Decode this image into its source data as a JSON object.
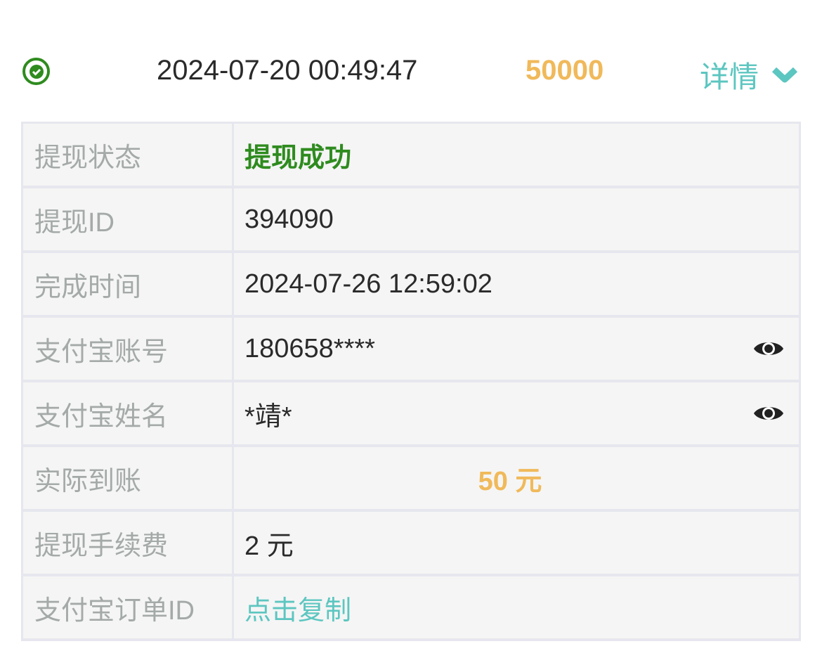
{
  "header": {
    "status_icon": "check-circle-icon",
    "time": "2024-07-20 00:49:47",
    "amount": "50000",
    "detail_label": "详情",
    "detail_icon": "chevron-down-icon"
  },
  "details": {
    "rows": [
      {
        "label": "提现状态",
        "value": "提现成功"
      },
      {
        "label": "提现ID",
        "value": "394090"
      },
      {
        "label": "完成时间",
        "value": "2024-07-26 12:59:02"
      },
      {
        "label": "支付宝账号",
        "value": "180658****",
        "icon": "eye-icon"
      },
      {
        "label": "支付宝姓名",
        "value": "*靖*",
        "icon": "eye-icon"
      },
      {
        "label": "实际到账",
        "value": "50 元"
      },
      {
        "label": "提现手续费",
        "value": "2 元"
      },
      {
        "label": "支付宝订单ID",
        "value": "点击复制"
      }
    ]
  },
  "colors": {
    "success": "#2e8b1e",
    "amount": "#f0b95a",
    "accent": "#5cc6c0"
  }
}
